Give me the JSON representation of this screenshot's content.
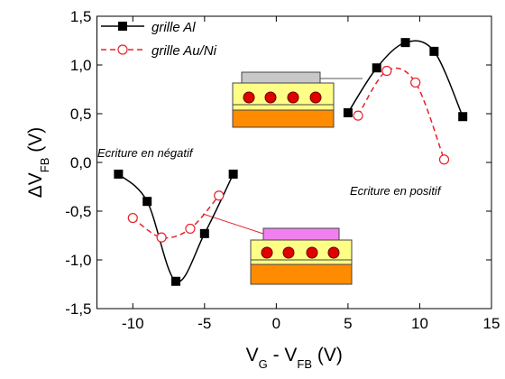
{
  "chart_data": {
    "type": "line",
    "x_label": [
      "V",
      "G",
      " - V",
      "FB",
      " (V)"
    ],
    "y_label": [
      "ΔV",
      "FB",
      " (V)"
    ],
    "annotations": [
      "Ecriture en négatif",
      "Ecriture en positif"
    ],
    "xlim": [
      -12.5,
      15
    ],
    "ylim": [
      -1.5,
      1.5
    ],
    "xticks": [
      -10,
      -5,
      0,
      5,
      10,
      15
    ],
    "yticks": [
      {
        "value": -1.5,
        "label": "-1,5"
      },
      {
        "value": -1.0,
        "label": "-1,0"
      },
      {
        "value": -0.5,
        "label": "-0,5"
      },
      {
        "value": 0.0,
        "label": "0,0"
      },
      {
        "value": 0.5,
        "label": "0,5"
      },
      {
        "value": 1.0,
        "label": "1,0"
      },
      {
        "value": 1.5,
        "label": "1,5"
      }
    ],
    "legend": "upper left",
    "series": [
      {
        "name": "grille Al",
        "color": "#000000",
        "marker": "square",
        "dashed": false,
        "x": [
          -11,
          -9,
          -7,
          -5,
          -3,
          null,
          5,
          7,
          9,
          11,
          13
        ],
        "values": [
          -0.12,
          -0.4,
          -1.22,
          -0.73,
          -0.12,
          null,
          0.51,
          0.97,
          1.23,
          1.14,
          0.47
        ]
      },
      {
        "name": "grille Au/Ni",
        "color": "#e8202a",
        "marker": "circle",
        "dashed": true,
        "x": [
          -10,
          -8,
          -6,
          -4,
          null,
          5.7,
          7.7,
          9.7,
          11.7
        ],
        "values": [
          -0.57,
          -0.77,
          -0.68,
          -0.34,
          null,
          0.48,
          0.94,
          0.82,
          0.03
        ]
      }
    ]
  }
}
